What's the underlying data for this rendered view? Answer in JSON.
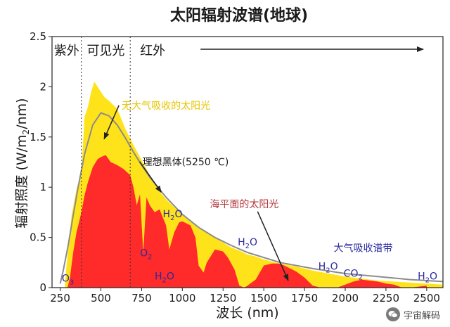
{
  "chart_data": {
    "type": "area",
    "title": "太阳辐射波谱(地球)",
    "xlabel": "波长 (nm)",
    "ylabel_prefix": "辐射照度 (W/m",
    "ylabel_sub": "2",
    "ylabel_suffix": "/nm)",
    "xlim": [
      200,
      2600
    ],
    "ylim": [
      0,
      2.5
    ],
    "xticks": [
      250,
      500,
      750,
      1000,
      1250,
      1500,
      1750,
      2000,
      2250,
      2500
    ],
    "yticks": [
      0,
      0.5,
      1,
      1.5,
      2,
      2.5
    ],
    "ytick_labels": [
      "0",
      "0.5",
      "1",
      "1.5",
      "2",
      "2.5"
    ],
    "regions": [
      {
        "label": "紫外",
        "from": 200,
        "to": 380
      },
      {
        "label": "可见光",
        "from": 380,
        "to": 680
      },
      {
        "label": "红外",
        "from": 680,
        "to": 2600
      }
    ],
    "series": [
      {
        "name": "无大气吸收的太阳光",
        "color": "#ffe31a",
        "x": [
          280,
          300,
          320,
          350,
          380,
          400,
          420,
          440,
          460,
          480,
          500,
          520,
          550,
          600,
          650,
          700,
          750,
          800,
          850,
          900,
          950,
          1000,
          1050,
          1100,
          1150,
          1200,
          1250,
          1300,
          1350,
          1400,
          1450,
          1500,
          1600,
          1700,
          1800,
          1900,
          2000,
          2100,
          2200,
          2300,
          2400,
          2500,
          2600
        ],
        "y": [
          0.05,
          0.42,
          0.72,
          0.98,
          1.15,
          1.7,
          1.8,
          1.95,
          2.05,
          2.0,
          1.95,
          1.9,
          1.86,
          1.78,
          1.58,
          1.42,
          1.27,
          1.12,
          0.98,
          0.88,
          0.8,
          0.73,
          0.66,
          0.59,
          0.55,
          0.5,
          0.45,
          0.4,
          0.37,
          0.33,
          0.31,
          0.28,
          0.24,
          0.21,
          0.17,
          0.14,
          0.11,
          0.09,
          0.07,
          0.06,
          0.05,
          0.04,
          0.03
        ]
      },
      {
        "name": "海平面的太阳光",
        "color": "#ff2a2a",
        "x": [
          295,
          310,
          330,
          350,
          370,
          380,
          400,
          420,
          450,
          480,
          500,
          530,
          560,
          600,
          640,
          680,
          700,
          720,
          740,
          760,
          780,
          800,
          830,
          860,
          900,
          920,
          950,
          980,
          1000,
          1050,
          1080,
          1100,
          1130,
          1150,
          1200,
          1250,
          1280,
          1320,
          1350,
          1380,
          1400,
          1450,
          1500,
          1550,
          1600,
          1650,
          1700,
          1750,
          1800,
          1850,
          1900,
          1950,
          2000,
          2050,
          2100,
          2150,
          2200,
          2250,
          2300,
          2350,
          2400,
          2450,
          2500
        ],
        "y": [
          0.0,
          0.1,
          0.35,
          0.55,
          0.68,
          0.75,
          0.92,
          1.05,
          1.2,
          1.28,
          1.3,
          1.32,
          1.25,
          1.22,
          1.18,
          1.12,
          1.0,
          0.82,
          0.93,
          0.35,
          0.9,
          0.82,
          0.75,
          0.78,
          0.62,
          0.38,
          0.55,
          0.65,
          0.66,
          0.62,
          0.5,
          0.22,
          0.15,
          0.25,
          0.38,
          0.36,
          0.3,
          0.18,
          0.02,
          0.0,
          0.02,
          0.08,
          0.22,
          0.24,
          0.24,
          0.2,
          0.16,
          0.1,
          0.02,
          0.0,
          0.0,
          0.0,
          0.03,
          0.06,
          0.08,
          0.07,
          0.06,
          0.04,
          0.03,
          0.0,
          0.0,
          0.01,
          0.02
        ]
      },
      {
        "name": "理想黑体(5250 ℃)",
        "color": "#8c8c8c",
        "x": [
          250,
          270,
          300,
          330,
          360,
          400,
          450,
          500,
          550,
          600,
          650,
          700,
          750,
          800,
          900,
          1000,
          1100,
          1200,
          1300,
          1400,
          1500,
          1600,
          1800,
          2000,
          2200,
          2400,
          2600
        ],
        "y": [
          0.04,
          0.18,
          0.43,
          0.72,
          1.0,
          1.33,
          1.62,
          1.74,
          1.71,
          1.62,
          1.49,
          1.35,
          1.22,
          1.1,
          0.9,
          0.73,
          0.6,
          0.5,
          0.42,
          0.35,
          0.3,
          0.25,
          0.19,
          0.14,
          0.11,
          0.08,
          0.06
        ]
      }
    ],
    "annotations": [
      {
        "id": "ann-no-atmosphere",
        "text": "无大气吸收的太阳光",
        "color": "#e9c500",
        "x": 900,
        "y": 1.78,
        "arrow_to": [
          520,
          1.48
        ]
      },
      {
        "id": "ann-blackbody",
        "text": "理想黑体(5250 ℃)",
        "color": "#1a1a1a",
        "x": 1020,
        "y": 1.22,
        "arrow_to": [
          870,
          0.95
        ]
      },
      {
        "id": "ann-sea-level",
        "text": "海平面的太阳光",
        "color": "#b5383b",
        "x": 1380,
        "y": 0.8,
        "arrow_to": [
          1650,
          0.07
        ]
      },
      {
        "id": "ann-absorption",
        "text": "大气吸收谱带",
        "color": "#2a2a9e",
        "x": 2110,
        "y": 0.36
      }
    ],
    "molecules": [
      {
        "base": "O",
        "sub": "3",
        "x": 260,
        "y": 0.06
      },
      {
        "base": "O",
        "sub": "2",
        "x": 740,
        "y": 0.31
      },
      {
        "base": "H",
        "sub": "2",
        "tail": "O",
        "x": 880,
        "y": 0.7
      },
      {
        "base": "H",
        "sub": "2",
        "tail": "O",
        "x": 830,
        "y": 0.08
      },
      {
        "base": "H",
        "sub": "2",
        "tail": "O",
        "x": 1340,
        "y": 0.42
      },
      {
        "base": "H",
        "sub": "2",
        "tail": "O",
        "x": 1835,
        "y": 0.18
      },
      {
        "base": "CO",
        "sub": "2",
        "x": 1990,
        "y": 0.11
      },
      {
        "base": "H",
        "sub": "2",
        "tail": "O",
        "x": 2445,
        "y": 0.08
      }
    ]
  },
  "watermark": {
    "text": "宇宙解码"
  }
}
